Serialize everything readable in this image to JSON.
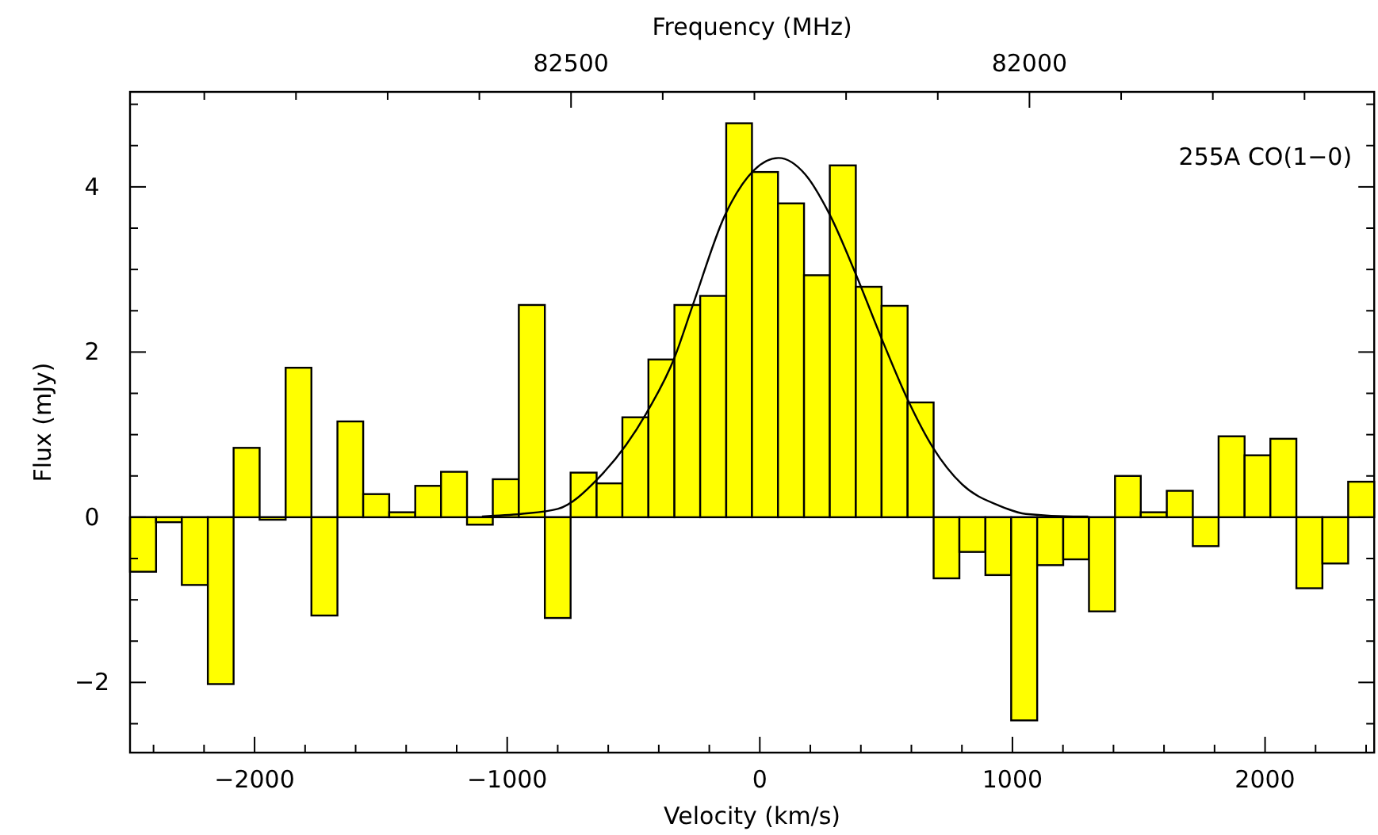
{
  "chart_data": {
    "type": "histogram",
    "xlabel": "Velocity (km/s)",
    "ylabel": "Flux (mJy)",
    "x2label": "Frequency (MHz)",
    "annotations": [
      "255A CO(1−0)"
    ],
    "bins": [
      -2493,
      -2390,
      -2288,
      -2185,
      -2083,
      -1980,
      -1877,
      -1775,
      -1672,
      -1570,
      -1467,
      -1364,
      -1262,
      -1159,
      -1057,
      -954,
      -851,
      -749,
      -646,
      -544,
      -441,
      -338,
      -236,
      -133,
      -31,
      72,
      175,
      277,
      380,
      482,
      585,
      688,
      790,
      893,
      995,
      1098,
      1201,
      1303,
      1406,
      1508,
      1611,
      1714,
      1816,
      1919,
      2021,
      2124,
      2227,
      2329,
      2432
    ],
    "series": [
      {
        "type": "histogram",
        "color": "#ffff00",
        "values": [
          -0.66,
          -0.06,
          -0.82,
          -2.02,
          0.84,
          -0.03,
          1.81,
          -1.19,
          1.16,
          0.28,
          0.06,
          0.38,
          0.55,
          -0.09,
          0.46,
          2.57,
          -1.22,
          0.54,
          0.41,
          1.21,
          1.91,
          2.57,
          2.68,
          4.77,
          4.18,
          3.8,
          2.93,
          4.26,
          2.79,
          2.56,
          1.39,
          -0.74,
          -0.42,
          -0.7,
          -2.46,
          -0.58,
          -0.51,
          -1.14,
          0.5,
          0.06,
          0.32,
          -0.35,
          0.98,
          0.75,
          0.95,
          -0.86,
          -0.56,
          0.43
        ]
      },
      {
        "type": "line",
        "color": "#000000",
        "x": [
          -1100,
          -946,
          -800,
          -640,
          -449,
          -338,
          -265,
          -139,
          -24,
          74,
          180,
          279,
          383,
          488,
          586,
          686,
          800,
          948,
          1053,
          1241,
          1300
        ],
        "values": [
          0.01,
          0.04,
          0.1,
          0.47,
          1.26,
          1.93,
          2.57,
          3.65,
          4.2,
          4.35,
          4.15,
          3.65,
          2.92,
          2.12,
          1.42,
          0.84,
          0.4,
          0.14,
          0.04,
          0.01,
          0.01
        ]
      }
    ],
    "xlim": [
      -2493,
      2432
    ],
    "ylim": [
      -2.85,
      5.15
    ],
    "xticks": [
      {
        "value": -2400,
        "label": null
      },
      {
        "value": -2200,
        "label": null
      },
      -2000,
      {
        "value": -1800,
        "label": null
      },
      {
        "value": -1600,
        "label": null
      },
      {
        "value": -1400,
        "label": null
      },
      {
        "value": -1200,
        "label": null
      },
      -1000,
      {
        "value": -800,
        "label": null
      },
      {
        "value": -600,
        "label": null
      },
      {
        "value": -400,
        "label": null
      },
      {
        "value": -200,
        "label": null
      },
      0,
      {
        "value": 200,
        "label": null
      },
      {
        "value": 400,
        "label": null
      },
      {
        "value": 600,
        "label": null
      },
      {
        "value": 800,
        "label": null
      },
      1000,
      {
        "value": 1200,
        "label": null
      },
      {
        "value": 1400,
        "label": null
      },
      {
        "value": 1600,
        "label": null
      },
      {
        "value": 1800,
        "label": null
      },
      2000,
      {
        "value": 2200,
        "label": null
      },
      {
        "value": 2400,
        "label": null
      }
    ],
    "yticks": [
      {
        "value": -2.5,
        "label": null
      },
      -2,
      {
        "value": -1.5,
        "label": null
      },
      {
        "value": -1,
        "label": null
      },
      {
        "value": -0.5,
        "label": null
      },
      0,
      {
        "value": 0.5,
        "label": null
      },
      {
        "value": 1,
        "label": null
      },
      {
        "value": 1.5,
        "label": null
      },
      2,
      {
        "value": 2.5,
        "label": null
      },
      {
        "value": 3,
        "label": null
      },
      {
        "value": 3.5,
        "label": null
      },
      4,
      {
        "value": 4.5,
        "label": null
      },
      {
        "value": 5,
        "label": null
      }
    ],
    "x2lim": [
      82981,
      81624
    ],
    "x2ticks": [
      {
        "value": 82900,
        "label": null
      },
      {
        "value": 82800,
        "label": null
      },
      {
        "value": 82700,
        "label": null
      },
      {
        "value": 82600,
        "label": null
      },
      82500,
      {
        "value": 82400,
        "label": null
      },
      {
        "value": 82300,
        "label": null
      },
      {
        "value": 82200,
        "label": null
      },
      {
        "value": 82100,
        "label": null
      },
      82000,
      {
        "value": 81900,
        "label": null
      },
      {
        "value": 81800,
        "label": null
      },
      {
        "value": 81700,
        "label": null
      }
    ]
  }
}
